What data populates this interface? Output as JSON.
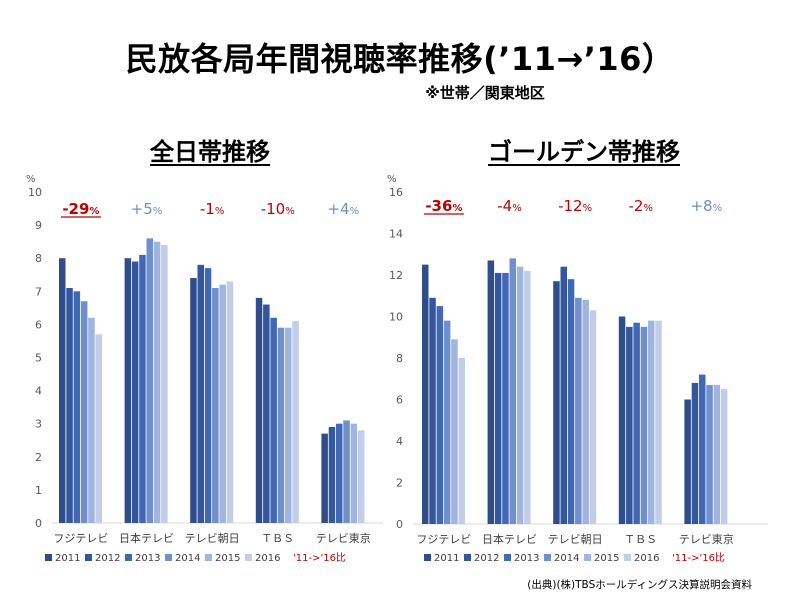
{
  "header": {
    "title": "民放各局年間視聴率推移(’11→’16）",
    "subtitle": "※世帯／関東地区"
  },
  "footer": {
    "source": "(出典)(株)TBSホールディングス決算説明会資料"
  },
  "colors": {
    "series": [
      "#2f4d8a",
      "#34569e",
      "#4168b4",
      "#6f90cc",
      "#9fb4df",
      "#c2cdea"
    ],
    "negative": "#c00000",
    "positive": "#6f8fc7",
    "axis_text": "#595959",
    "axis_line": "#d9d9d9"
  },
  "chart_data": [
    {
      "type": "bar",
      "title": "全日帯推移",
      "unit": "%",
      "ylim": [
        0,
        10
      ],
      "yticks": [
        0,
        1,
        2,
        3,
        4,
        5,
        6,
        7,
        8,
        9,
        10
      ],
      "categories": [
        "フジテレビ",
        "日本テレビ",
        "テレビ朝日",
        "ＴＢＳ",
        "テレビ東京"
      ],
      "series": [
        {
          "name": "2011",
          "values": [
            8.0,
            8.0,
            7.4,
            6.8,
            2.7
          ]
        },
        {
          "name": "2012",
          "values": [
            7.1,
            7.9,
            7.8,
            6.6,
            2.9
          ]
        },
        {
          "name": "2013",
          "values": [
            7.0,
            8.1,
            7.7,
            6.2,
            3.0
          ]
        },
        {
          "name": "2014",
          "values": [
            6.7,
            8.6,
            7.1,
            5.9,
            3.1
          ]
        },
        {
          "name": "2015",
          "values": [
            6.2,
            8.5,
            7.2,
            5.9,
            3.0
          ]
        },
        {
          "name": "2016",
          "values": [
            5.7,
            8.4,
            7.3,
            6.1,
            2.8
          ]
        }
      ],
      "changes": [
        {
          "num": "-29",
          "unit": "%",
          "sign": "negative",
          "emphasis": true
        },
        {
          "num": "+5",
          "unit": "%",
          "sign": "positive",
          "emphasis": false
        },
        {
          "num": "-1",
          "unit": "%",
          "sign": "negative",
          "emphasis": false
        },
        {
          "num": "-10",
          "unit": "%",
          "sign": "negative",
          "emphasis": false
        },
        {
          "num": "+4",
          "unit": "%",
          "sign": "positive",
          "emphasis": false
        }
      ],
      "legend_note": "'11->'16比",
      "legend_position": "bottom"
    },
    {
      "type": "bar",
      "title": "ゴールデン帯推移",
      "unit": "%",
      "ylim": [
        0,
        16
      ],
      "yticks": [
        0,
        2,
        4,
        6,
        8,
        10,
        12,
        14,
        16
      ],
      "categories": [
        "フジテレビ",
        "日本テレビ",
        "テレビ朝日",
        "ＴＢＳ",
        "テレビ東京"
      ],
      "series": [
        {
          "name": "2011",
          "values": [
            12.5,
            12.7,
            11.7,
            10.0,
            6.0
          ]
        },
        {
          "name": "2012",
          "values": [
            10.9,
            12.1,
            12.4,
            9.5,
            6.8
          ]
        },
        {
          "name": "2013",
          "values": [
            10.5,
            12.1,
            11.8,
            9.7,
            7.2
          ]
        },
        {
          "name": "2014",
          "values": [
            9.8,
            12.8,
            10.9,
            9.5,
            6.7
          ]
        },
        {
          "name": "2015",
          "values": [
            8.9,
            12.4,
            10.8,
            9.8,
            6.7
          ]
        },
        {
          "name": "2016",
          "values": [
            8.0,
            12.2,
            10.3,
            9.8,
            6.5
          ]
        }
      ],
      "changes": [
        {
          "num": "-36",
          "unit": "%",
          "sign": "negative",
          "emphasis": true
        },
        {
          "num": "-4",
          "unit": "%",
          "sign": "negative",
          "emphasis": false
        },
        {
          "num": "-12",
          "unit": "%",
          "sign": "negative",
          "emphasis": false
        },
        {
          "num": "-2",
          "unit": "%",
          "sign": "negative",
          "emphasis": false
        },
        {
          "num": "+8",
          "unit": "%",
          "sign": "positive",
          "emphasis": false
        }
      ],
      "legend_note": "'11->'16比",
      "legend_position": "bottom"
    }
  ]
}
